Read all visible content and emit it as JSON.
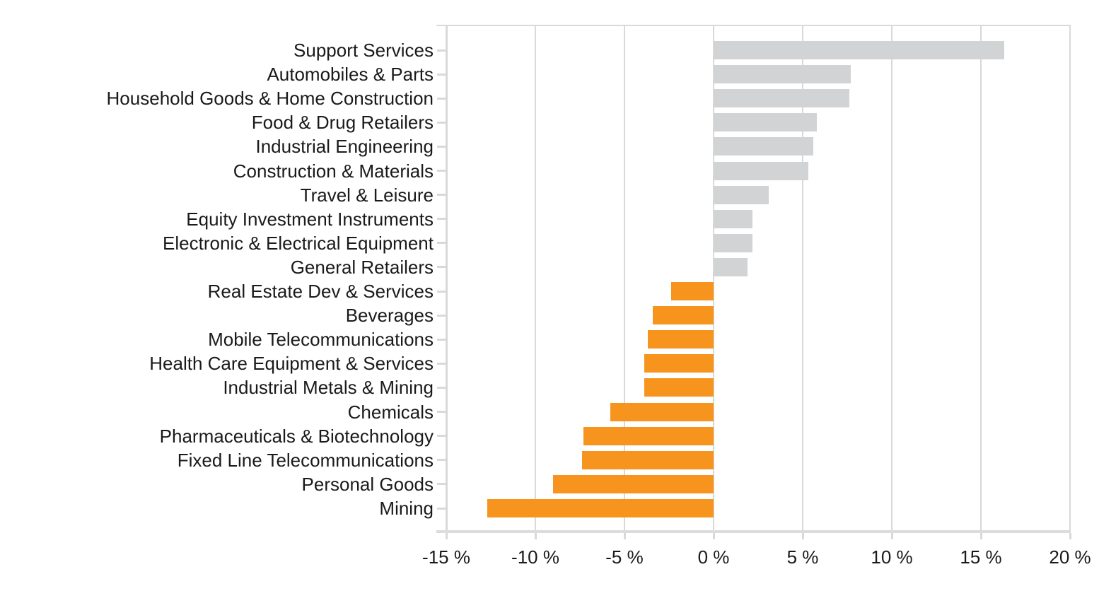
{
  "chart_data": {
    "type": "bar",
    "orientation": "horizontal",
    "title": "",
    "xlabel": "",
    "ylabel": "",
    "grid": "vertical",
    "legend_position": "none",
    "xlim": [
      -15,
      20
    ],
    "x_tick_values": [
      -15,
      -10,
      -5,
      0,
      5,
      10,
      15,
      20
    ],
    "x_tick_labels": [
      "-15 %",
      "-10 %",
      "-5 %",
      "0 %",
      "5 %",
      "10 %",
      "15 %",
      "20 %"
    ],
    "value_unit": "%",
    "categories": [
      "Support Services",
      "Automobiles & Parts",
      "Household Goods & Home Construction",
      "Food & Drug Retailers",
      "Industrial Engineering",
      "Construction & Materials",
      "Travel & Leisure",
      "Equity Investment Instruments",
      "Electronic & Electrical Equipment",
      "General Retailers",
      "Real Estate Dev & Services",
      "Beverages",
      "Mobile Telecommunications",
      "Health Care Equipment & Services",
      "Industrial Metals & Mining",
      "Chemicals",
      "Pharmaceuticals & Biotechnology",
      "Fixed Line Telecommunications",
      "Personal Goods",
      "Mining"
    ],
    "values": [
      16.3,
      7.7,
      7.6,
      5.8,
      5.6,
      5.3,
      3.1,
      2.2,
      2.2,
      1.9,
      -2.4,
      -3.4,
      -3.7,
      -3.9,
      -3.9,
      -5.8,
      -7.3,
      -7.4,
      -9.0,
      -12.7
    ],
    "colors": {
      "positive_bar": "#D2D3D5",
      "negative_bar": "#F7941D",
      "gridline": "#D9D9D9",
      "axis_line": "#DCDCDE",
      "text": "#1A1A1A",
      "background": "#FFFFFF"
    }
  }
}
